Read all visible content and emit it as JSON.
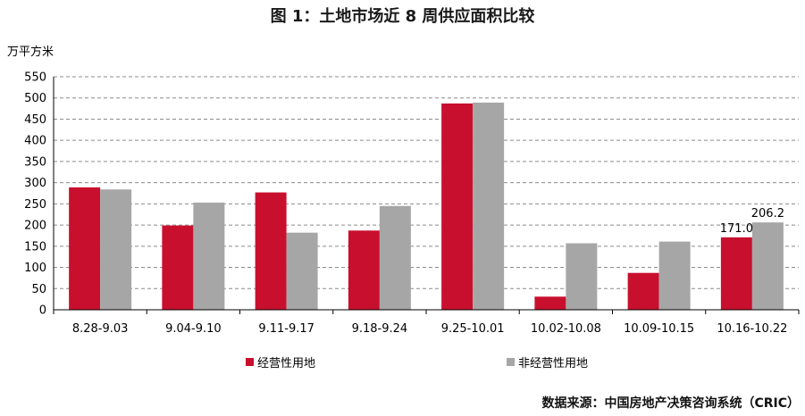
{
  "title": "图 1：土地市场近 8 周供应面积比较",
  "source": "数据来源：中国房地产决策咨询系统（CRIC）",
  "chart_data": {
    "type": "bar",
    "ylabel": "万平方米",
    "ylim": [
      0,
      550
    ],
    "yticks": [
      0,
      50,
      100,
      150,
      200,
      250,
      300,
      350,
      400,
      450,
      500,
      550
    ],
    "grid": true,
    "legend_position": "bottom",
    "categories": [
      "8.28-9.03",
      "9.04-9.10",
      "9.11-9.17",
      "9.18-9.24",
      "9.25-10.01",
      "10.02-10.08",
      "10.09-10.15",
      "10.16-10.22"
    ],
    "series": [
      {
        "name": "经营性用地",
        "color": "#c8102e",
        "values": [
          289,
          199,
          277,
          187,
          487,
          31,
          87,
          171.0
        ]
      },
      {
        "name": "非经营性用地",
        "color": "#a6a6a6",
        "values": [
          284,
          253,
          182,
          245,
          489,
          157,
          161,
          206.2
        ]
      }
    ],
    "data_labels": [
      {
        "series": 0,
        "index": 7,
        "text": "171.0"
      },
      {
        "series": 1,
        "index": 7,
        "text": "206.2"
      }
    ]
  }
}
